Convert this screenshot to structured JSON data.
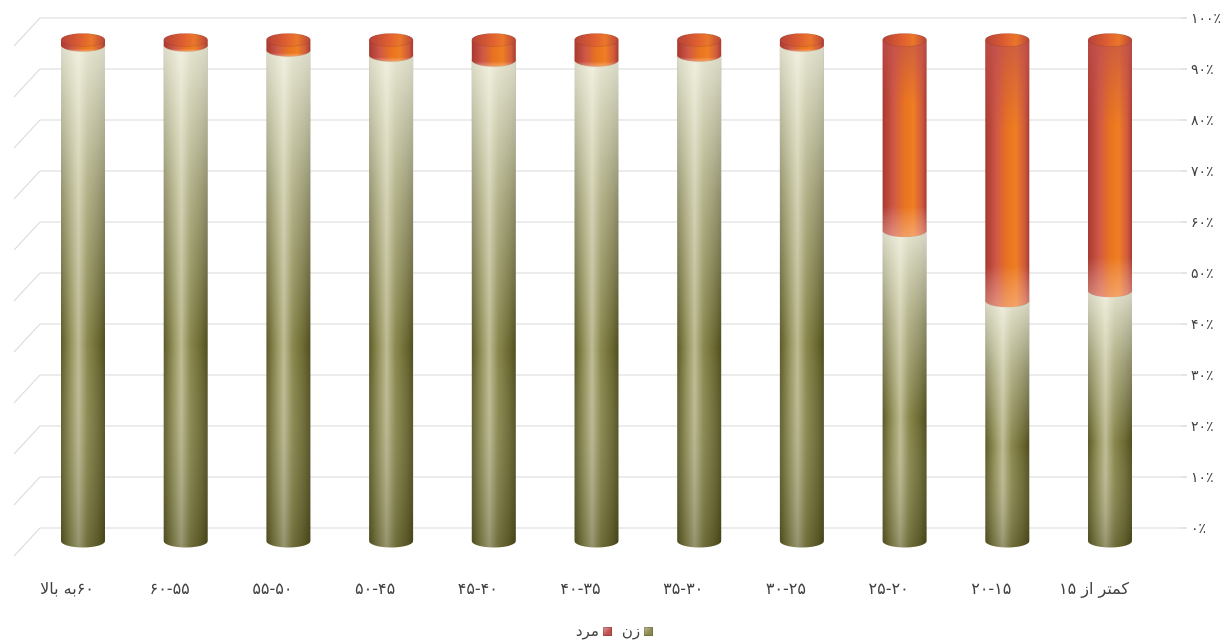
{
  "chart_data": {
    "type": "bar",
    "stacked": true,
    "percent_stacked": true,
    "x_reversed": true,
    "categories": [
      "کمتر از ۱۵",
      "۲۰-۱۵",
      "۲۵-۲۰",
      "۳۰-۲۵",
      "۳۵-۳۰",
      "۴۰-۳۵",
      "۴۵-۴۰",
      "۵۰-۴۵",
      "۵۵-۵۰",
      "۶۰-۵۵",
      "۶۰به بالا"
    ],
    "series": [
      {
        "name": "زن",
        "color": "#8c8a4e",
        "values": [
          50,
          48,
          62,
          99,
          97,
          96,
          96,
          97,
          98,
          99,
          99
        ]
      },
      {
        "name": "مرد",
        "color": "#c0504d",
        "values": [
          50,
          52,
          38,
          1,
          3,
          4,
          4,
          3,
          2,
          1,
          1
        ]
      }
    ],
    "ylim": [
      0,
      100
    ],
    "y_ticks": [
      0,
      10,
      20,
      30,
      40,
      50,
      60,
      70,
      80,
      90,
      100
    ],
    "y_tick_labels": [
      "۰٪",
      "۱۰٪",
      "۲۰٪",
      "۳۰٪",
      "۴۰٪",
      "۵۰٪",
      "۶۰٪",
      "۷۰٪",
      "۸۰٪",
      "۹۰٪",
      "۱۰۰٪"
    ],
    "y_axis_side": "right",
    "grid": true,
    "legend": "bottom"
  }
}
